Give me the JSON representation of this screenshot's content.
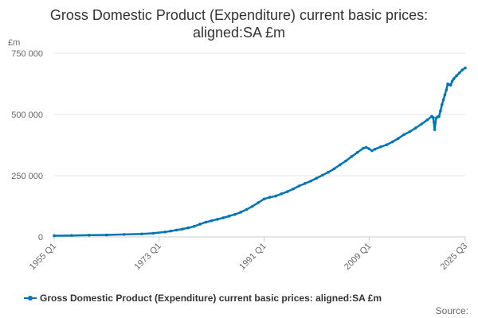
{
  "chart_data": {
    "type": "line",
    "title_line1": "Gross Domestic Product (Expenditure) current basic prices:",
    "title_line2": "aligned:SA £m",
    "ylabel": "£m",
    "ylim": [
      0,
      750000
    ],
    "yticks": [
      {
        "value": 0,
        "label": "0"
      },
      {
        "value": 250000,
        "label": "250 000"
      },
      {
        "value": 500000,
        "label": "500 000"
      },
      {
        "value": 750000,
        "label": "750 000"
      }
    ],
    "xlim": [
      1955.0,
      2025.5
    ],
    "xticks": [
      {
        "value": 1955.0,
        "label": "1955 Q1"
      },
      {
        "value": 1973.0,
        "label": "1973 Q1"
      },
      {
        "value": 1991.0,
        "label": "1991 Q1"
      },
      {
        "value": 2009.0,
        "label": "2009 Q1"
      },
      {
        "value": 2025.5,
        "label": "2025 Q3"
      }
    ],
    "grid": true,
    "legend_position": "bottom",
    "colors": {
      "series": "#0075b4",
      "grid": "#e6e6e6",
      "axis": "#cccccc"
    },
    "series": [
      {
        "name": "Gross Domestic Product (Expenditure) current basic prices: aligned:SA £m",
        "points": [
          [
            1955.0,
            5000
          ],
          [
            1958.0,
            6000
          ],
          [
            1961.0,
            7000
          ],
          [
            1964.0,
            8000
          ],
          [
            1967.0,
            10000
          ],
          [
            1970.0,
            12000
          ],
          [
            1972.0,
            15000
          ],
          [
            1974.0,
            20000
          ],
          [
            1975.0,
            24000
          ],
          [
            1976.0,
            28000
          ],
          [
            1977.0,
            32000
          ],
          [
            1978.0,
            37000
          ],
          [
            1979.0,
            43000
          ],
          [
            1980.0,
            52000
          ],
          [
            1981.0,
            60000
          ],
          [
            1982.0,
            66000
          ],
          [
            1983.0,
            72000
          ],
          [
            1984.0,
            78000
          ],
          [
            1985.0,
            85000
          ],
          [
            1986.0,
            92000
          ],
          [
            1987.0,
            101000
          ],
          [
            1988.0,
            112000
          ],
          [
            1989.0,
            125000
          ],
          [
            1990.0,
            140000
          ],
          [
            1991.0,
            155000
          ],
          [
            1992.0,
            162000
          ],
          [
            1993.0,
            167000
          ],
          [
            1994.0,
            176000
          ],
          [
            1995.0,
            185000
          ],
          [
            1996.0,
            196000
          ],
          [
            1997.0,
            208000
          ],
          [
            1998.0,
            218000
          ],
          [
            1999.0,
            228000
          ],
          [
            2000.0,
            240000
          ],
          [
            2001.0,
            252000
          ],
          [
            2002.0,
            264000
          ],
          [
            2003.0,
            278000
          ],
          [
            2004.0,
            294000
          ],
          [
            2005.0,
            310000
          ],
          [
            2006.0,
            328000
          ],
          [
            2007.0,
            345000
          ],
          [
            2008.0,
            362000
          ],
          [
            2008.5,
            366000
          ],
          [
            2009.0,
            360000
          ],
          [
            2009.5,
            352000
          ],
          [
            2010.0,
            358000
          ],
          [
            2011.0,
            368000
          ],
          [
            2012.0,
            376000
          ],
          [
            2013.0,
            388000
          ],
          [
            2014.0,
            402000
          ],
          [
            2015.0,
            418000
          ],
          [
            2016.0,
            430000
          ],
          [
            2017.0,
            445000
          ],
          [
            2018.0,
            461000
          ],
          [
            2019.0,
            478000
          ],
          [
            2019.75,
            492000
          ],
          [
            2020.0,
            488000
          ],
          [
            2020.25,
            438000
          ],
          [
            2020.5,
            485000
          ],
          [
            2020.75,
            490000
          ],
          [
            2021.0,
            492000
          ],
          [
            2021.25,
            515000
          ],
          [
            2021.5,
            540000
          ],
          [
            2021.75,
            560000
          ],
          [
            2022.0,
            580000
          ],
          [
            2022.25,
            600000
          ],
          [
            2022.5,
            625000
          ],
          [
            2022.75,
            622000
          ],
          [
            2023.0,
            620000
          ],
          [
            2023.25,
            635000
          ],
          [
            2023.5,
            645000
          ],
          [
            2024.0,
            658000
          ],
          [
            2024.5,
            670000
          ],
          [
            2025.0,
            682000
          ],
          [
            2025.5,
            690000
          ]
        ]
      }
    ],
    "source_label": "Source:"
  }
}
